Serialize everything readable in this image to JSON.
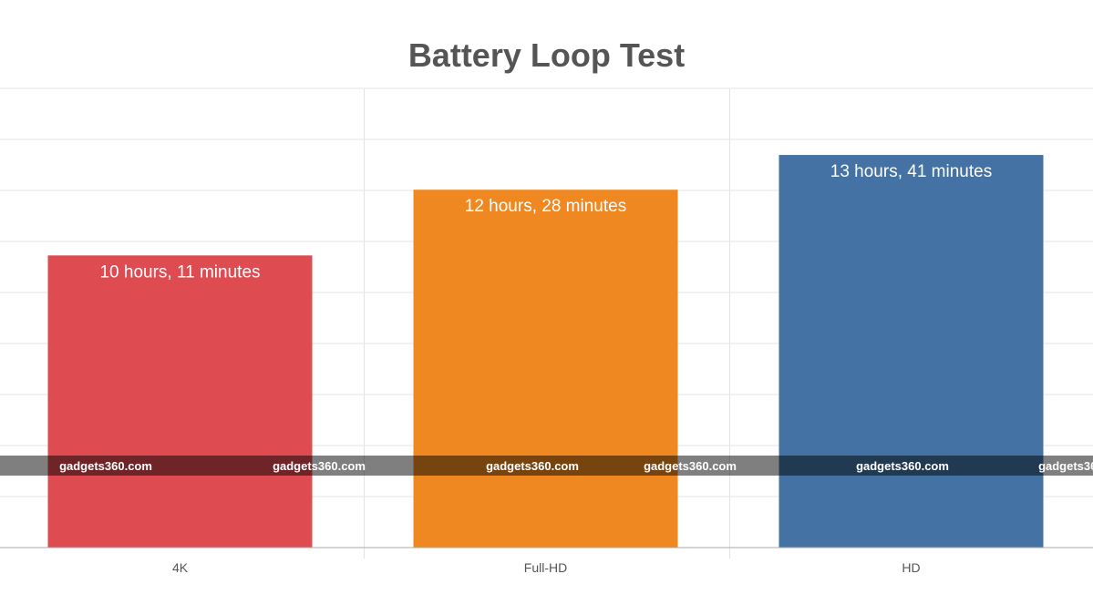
{
  "chart_data": {
    "type": "bar",
    "title": "Battery Loop Test",
    "categories": [
      "4K",
      "Full-HD",
      "HD"
    ],
    "values": [
      10.18,
      12.47,
      13.68
    ],
    "value_labels": [
      "10 hours, 11 minutes",
      "12 hours, 28 minutes",
      "13 hours, 41 minutes"
    ],
    "colors": [
      "#de4b51",
      "#ef8820",
      "#4472a4"
    ],
    "ylim": [
      0,
      16
    ],
    "grid": true,
    "legend": "none"
  },
  "watermark": "gadgets360.com"
}
